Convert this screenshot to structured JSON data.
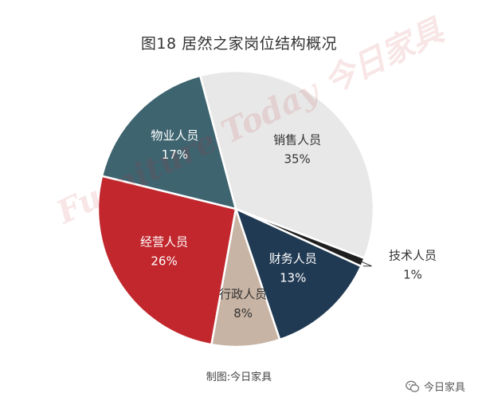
{
  "chart_data": {
    "type": "pie",
    "title": "图18  居然之家岗位结构概况",
    "source": "制图:今日家具",
    "slices": [
      {
        "label": "销售人员",
        "value": 35,
        "value_label": "35%",
        "color": "#e8e8e8",
        "text_color": "#333333"
      },
      {
        "label": "技术人员",
        "value": 1,
        "value_label": "1%",
        "color": "#1f1f1f",
        "text_color": "#333333"
      },
      {
        "label": "财务人员",
        "value": 13,
        "value_label": "13%",
        "color": "#213a53",
        "text_color": "#ffffff"
      },
      {
        "label": "行政人员",
        "value": 8,
        "value_label": "8%",
        "color": "#c8b4a4",
        "text_color": "#333333"
      },
      {
        "label": "经营人员",
        "value": 26,
        "value_label": "26%",
        "color": "#c1272d",
        "text_color": "#ffffff"
      },
      {
        "label": "物业人员",
        "value": 17,
        "value_label": "17%",
        "color": "#3e6470",
        "text_color": "#ffffff"
      }
    ]
  },
  "watermark": "Furniture Today 今日家具",
  "account": {
    "name": "今日家具",
    "icon": "wechat-icon"
  }
}
